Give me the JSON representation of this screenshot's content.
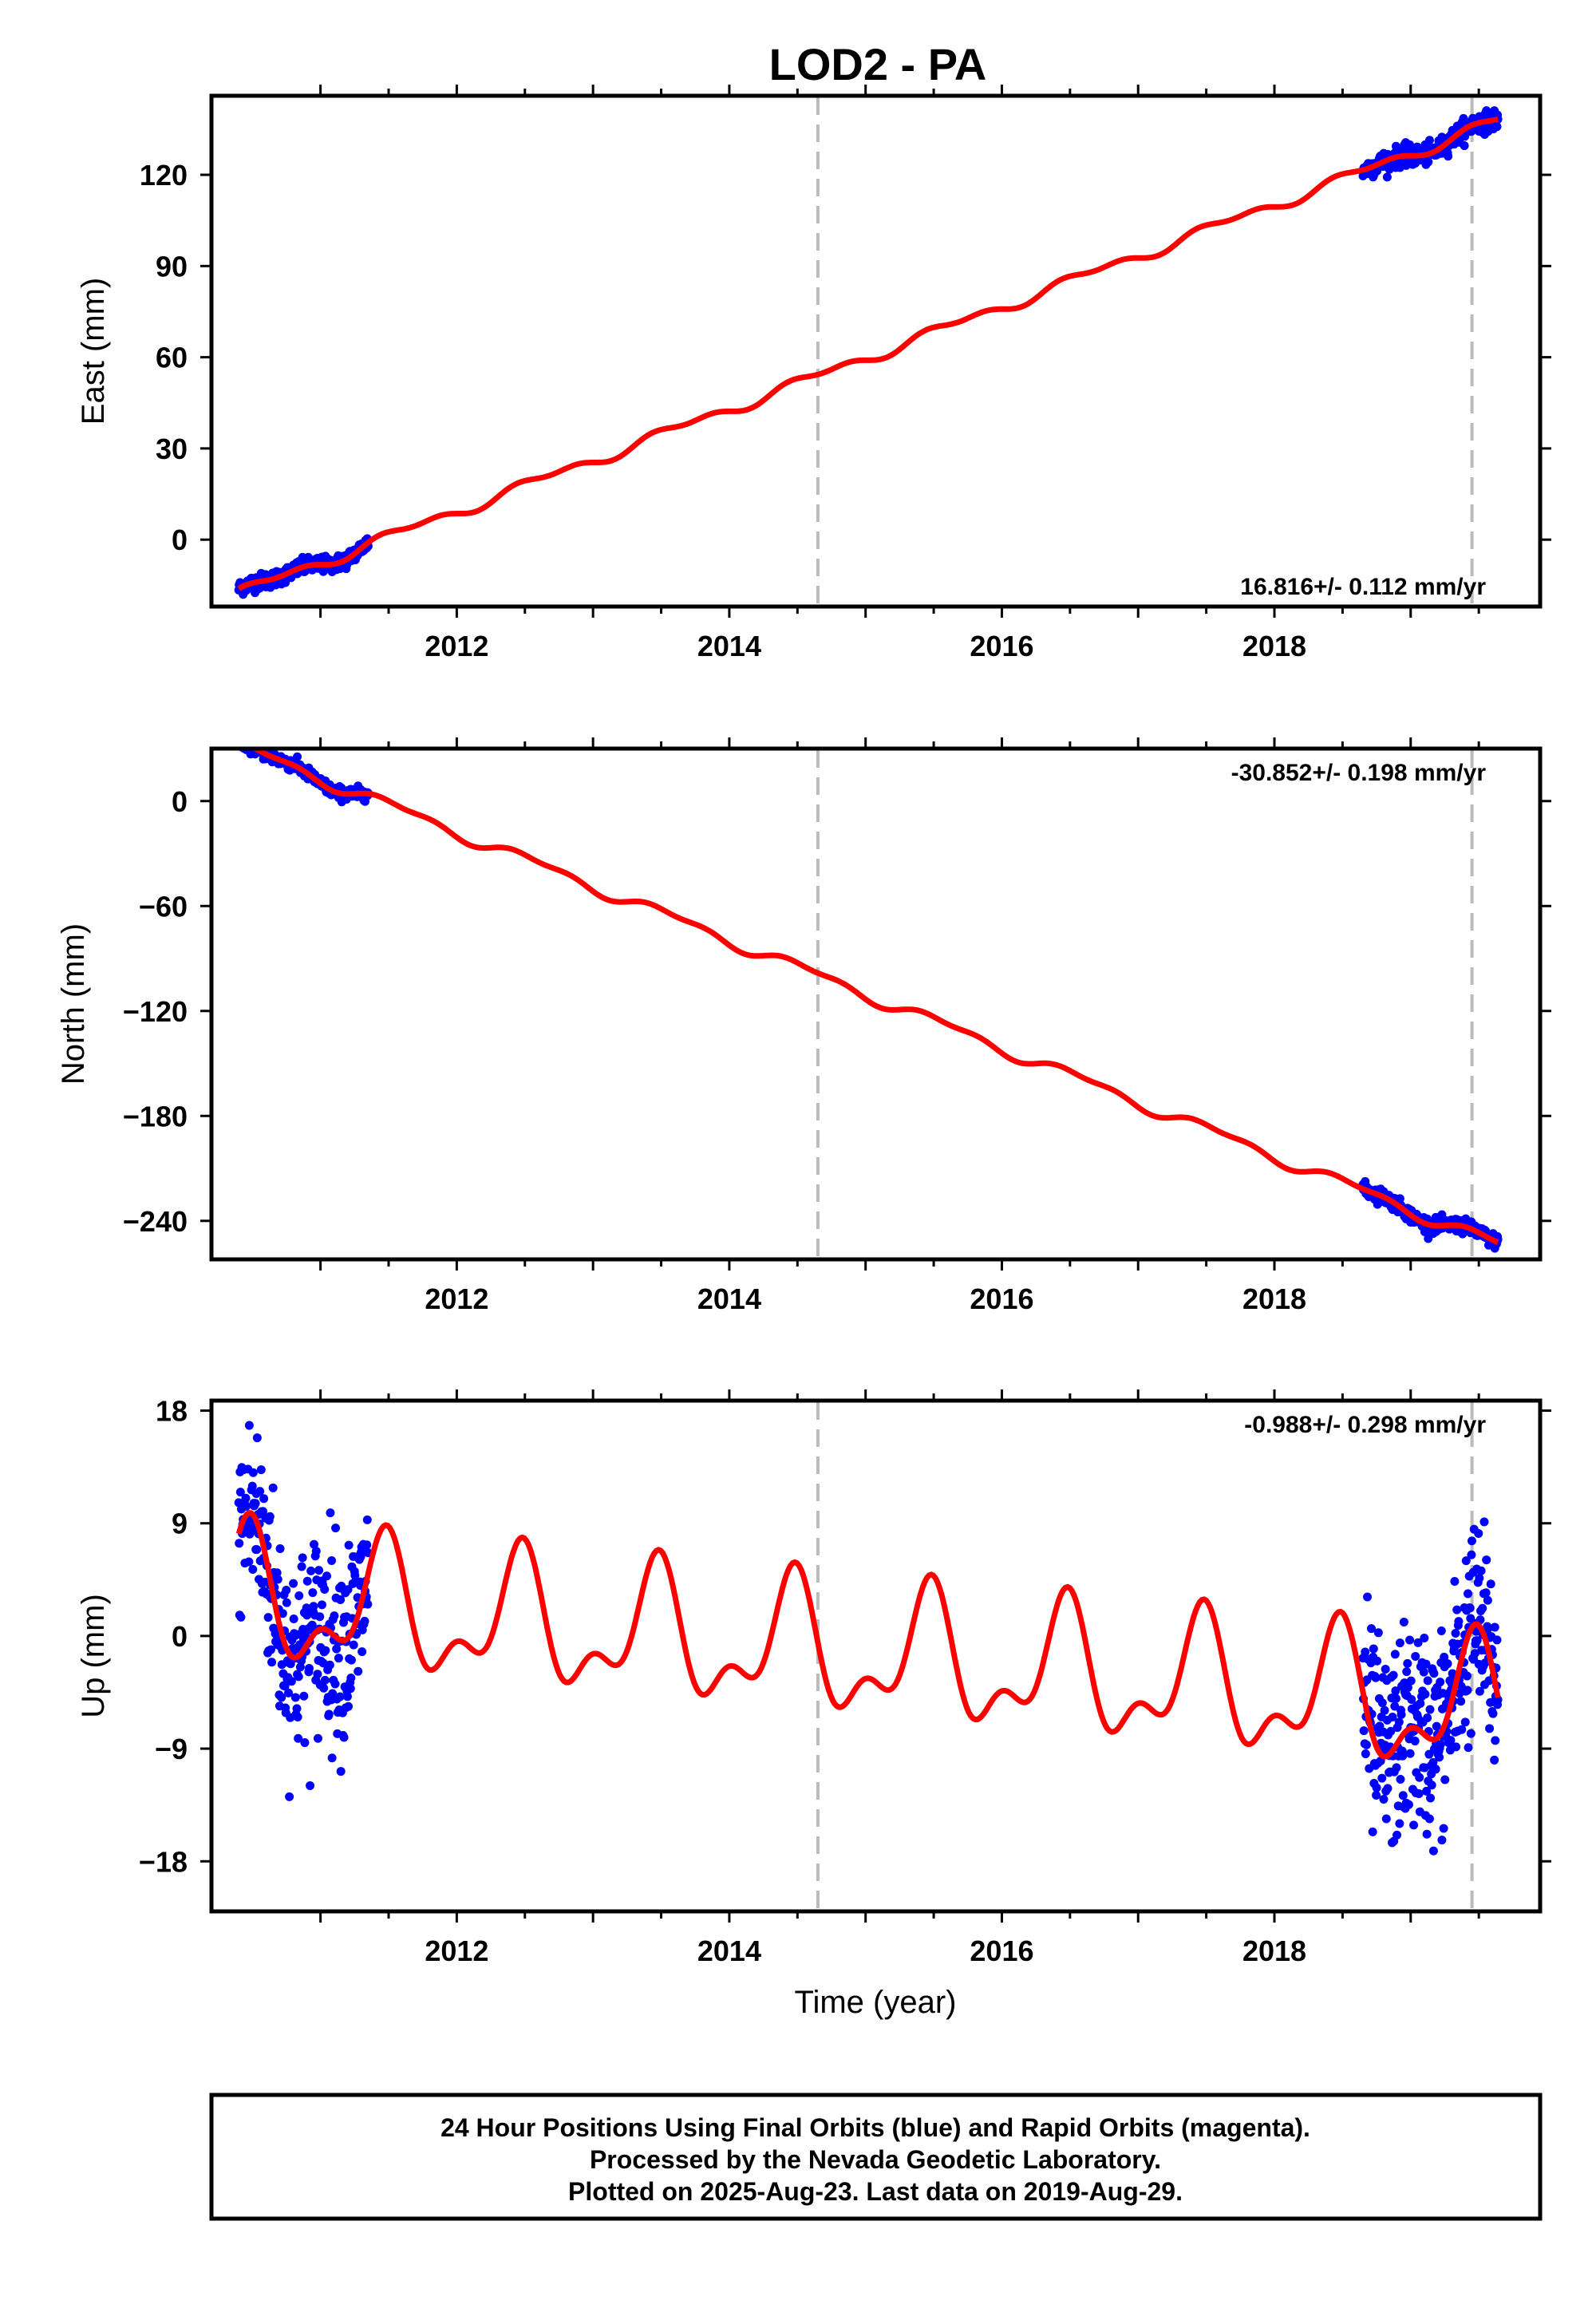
{
  "title": "LOD2 - PA",
  "colors": {
    "final": "#0000ff",
    "model": "#ff0000",
    "event": "#bbbbbb"
  },
  "events": [
    2014.65,
    2019.45
  ],
  "x_ticks": [
    "2012",
    "2014",
    "2016",
    "2018"
  ],
  "xlabel": "Time (year)",
  "footer": [
    "24 Hour Positions Using Final Orbits (blue) and Rapid Orbits (magenta).",
    "Processed by the Nevada Geodetic Laboratory.",
    "Plotted on 2025-Aug-23. Last data on 2019-Aug-29."
  ],
  "chart_data": [
    {
      "type": "scatter",
      "component": "east",
      "ylabel": "East (mm)",
      "xlim": [
        2010.2,
        2019.95
      ],
      "ylim": [
        -22,
        146
      ],
      "y_ticks": [
        "120",
        "90",
        "60",
        "30",
        "0"
      ],
      "y_tick_values": [
        120,
        90,
        60,
        30,
        0
      ],
      "rate": "16.816+/- 0.112 mm/yr",
      "rate_position": "bottom-right",
      "model": {
        "start_year": 2010.4,
        "end_year": 2019.64,
        "offset": -17.6,
        "rate": 16.816,
        "annual_amp": 1.5,
        "annual_phase": 0.3,
        "semi_amp": 1.0,
        "semi_phase": 1.4
      },
      "data_segments": [
        {
          "start": 2010.4,
          "end": 2011.35,
          "scatter": 1.3
        },
        {
          "start": 2018.65,
          "end": 2019.64,
          "scatter": 1.6
        }
      ]
    },
    {
      "type": "scatter",
      "component": "north",
      "ylabel": "North (mm)",
      "xlim": [
        2010.2,
        2019.95
      ],
      "ylim": [
        -262,
        30
      ],
      "y_ticks": [
        "0",
        "−60",
        "−120",
        "−180",
        "−240"
      ],
      "y_tick_values": [
        0,
        -60,
        -120,
        -180,
        -240
      ],
      "rate": "-30.852+/- 0.198 mm/yr",
      "rate_position": "top-right",
      "model": {
        "start_year": 2010.4,
        "end_year": 2019.64,
        "offset": 31.5,
        "rate": -30.852,
        "annual_amp": 3.0,
        "annual_phase": 0.5,
        "semi_amp": 1.5,
        "semi_phase": 2.0
      },
      "data_segments": [
        {
          "start": 2010.4,
          "end": 2011.35,
          "scatter": 1.8
        },
        {
          "start": 2018.65,
          "end": 2019.64,
          "scatter": 2.0
        }
      ]
    },
    {
      "type": "scatter",
      "component": "up",
      "ylabel": "Up (mm)",
      "xlim": [
        2010.2,
        2019.95
      ],
      "ylim": [
        -22,
        18.8
      ],
      "y_ticks": [
        "18",
        "9",
        "0",
        "−9",
        "−18"
      ],
      "y_tick_values": [
        18,
        9,
        0,
        -9,
        -18
      ],
      "rate": "-0.988+/- 0.298 mm/yr",
      "rate_position": "top-right",
      "model": {
        "start_year": 2010.4,
        "end_year": 2019.64,
        "offset": 3.0,
        "rate": -0.988,
        "annual_amp": 4.5,
        "annual_phase": 1.2,
        "semi_amp": 2.5,
        "semi_phase": 0.4
      },
      "data_segments": [
        {
          "start": 2010.4,
          "end": 2011.35,
          "scatter": 4.0
        },
        {
          "start": 2018.65,
          "end": 2019.64,
          "scatter": 4.0
        }
      ]
    }
  ]
}
